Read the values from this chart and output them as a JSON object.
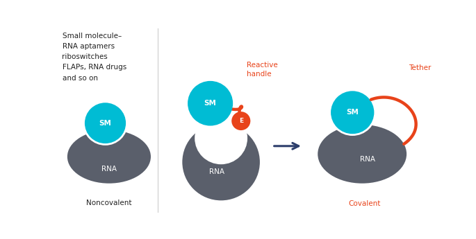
{
  "bg_color": "#ffffff",
  "rna_color": "#5a5f6b",
  "sm_color": "#00bcd4",
  "electrophile_color": "#e8431a",
  "tether_color": "#e8431a",
  "arrow_color": "#2c3e6b",
  "text_color_dark": "#222222",
  "text_color_red": "#e8431a",
  "sm_label": "SM",
  "rna_label": "RNA",
  "e_label": "E",
  "noncovalent_label": "Noncovalent",
  "covalent_label": "Covalent",
  "reactive_handle_label": "Reactive\nhandle",
  "tether_label": "Tether",
  "left_text": "Small molecule–\nRNA aptamers\nriboswitches\nFLAPs, RNA drugs\nand so on",
  "fig_width": 6.85,
  "fig_height": 3.45,
  "dpi": 100
}
